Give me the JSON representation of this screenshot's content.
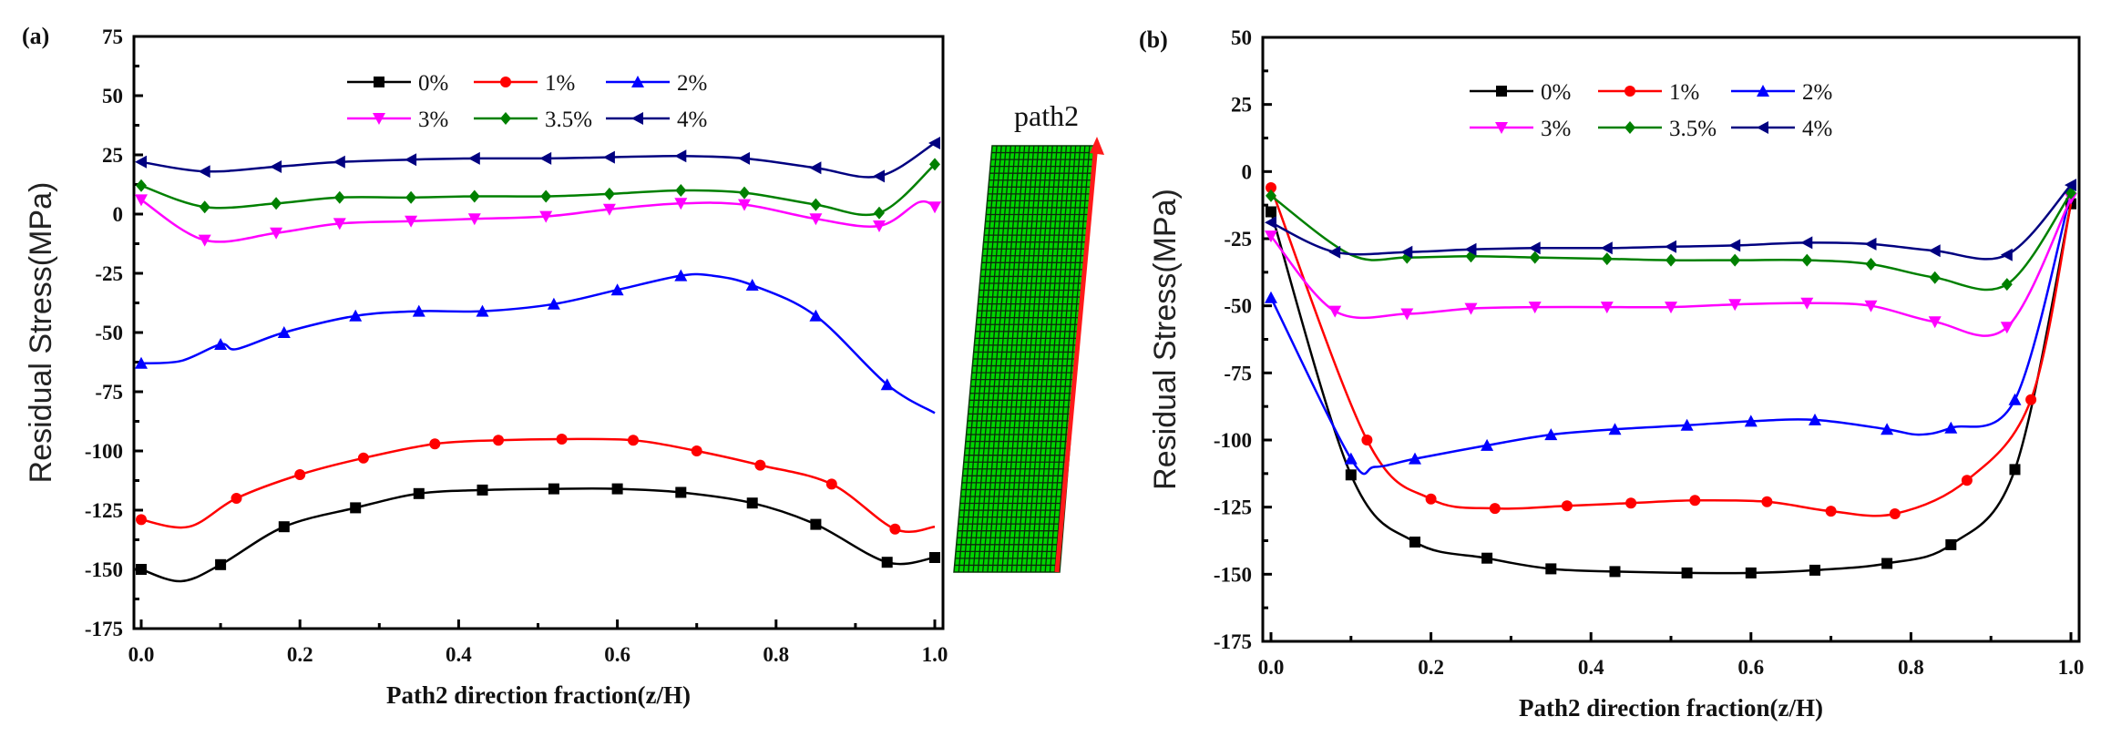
{
  "chart_data": [
    {
      "panel": "(a)",
      "type": "line",
      "xlabel": "Path2 direction fraction(z/H)",
      "ylabel": "Residual Stress(MPa)",
      "xlim": [
        0,
        1.0
      ],
      "ylim": [
        -175,
        75
      ],
      "yticks": [
        -175,
        -150,
        -125,
        -100,
        -75,
        -50,
        -25,
        0,
        25,
        50,
        75
      ],
      "xticks": [
        "0.0",
        "0.2",
        "0.4",
        "0.6",
        "0.8",
        "1.0"
      ],
      "legend": "top-center, 2 rows x 3 columns",
      "inset_label": "path2",
      "series": [
        {
          "name": "0%",
          "color": "#000000",
          "marker": "square",
          "x": [
            0,
            0.05,
            0.1,
            0.18,
            0.27,
            0.35,
            0.43,
            0.52,
            0.6,
            0.68,
            0.77,
            0.85,
            0.94,
            1.0
          ],
          "y": [
            -150,
            -155,
            -148,
            -132,
            -124,
            -118,
            -116.5,
            -116,
            -116,
            -117.5,
            -122,
            -131,
            -147,
            -145
          ],
          "m": [
            1,
            0,
            1,
            1,
            1,
            1,
            1,
            1,
            1,
            1,
            1,
            1,
            1,
            1
          ]
        },
        {
          "name": "1%",
          "color": "#ff0000",
          "marker": "circle",
          "x": [
            0,
            0.06,
            0.12,
            0.2,
            0.28,
            0.37,
            0.45,
            0.53,
            0.62,
            0.7,
            0.78,
            0.87,
            0.95,
            1.0
          ],
          "y": [
            -129,
            -132,
            -120,
            -110,
            -103,
            -97,
            -95.5,
            -95,
            -95.5,
            -100,
            -106,
            -114,
            -133,
            -132
          ],
          "m": [
            1,
            0,
            1,
            1,
            1,
            1,
            1,
            1,
            1,
            1,
            1,
            1,
            1,
            0
          ]
        },
        {
          "name": "2%",
          "color": "#0000ff",
          "marker": "triangle-up",
          "x": [
            0,
            0.05,
            0.1,
            0.12,
            0.18,
            0.27,
            0.35,
            0.43,
            0.52,
            0.6,
            0.68,
            0.72,
            0.77,
            0.85,
            0.94,
            1.0
          ],
          "y": [
            -63,
            -62,
            -55,
            -57,
            -50,
            -43,
            -41,
            -41,
            -38,
            -32,
            -26,
            -26,
            -30,
            -43,
            -72,
            -84
          ],
          "m": [
            1,
            0,
            1,
            0,
            1,
            1,
            1,
            1,
            1,
            1,
            1,
            0,
            1,
            1,
            1,
            0
          ]
        },
        {
          "name": "3%",
          "color": "#ff00ff",
          "marker": "triangle-down",
          "x": [
            0,
            0.08,
            0.17,
            0.25,
            0.34,
            0.42,
            0.51,
            0.59,
            0.68,
            0.76,
            0.85,
            0.93,
            0.98,
            1.0
          ],
          "y": [
            6,
            -11,
            -8,
            -4,
            -3,
            -2,
            -1,
            2,
            4.5,
            4,
            -2,
            -5,
            5,
            3
          ],
          "m": [
            1,
            1,
            1,
            1,
            1,
            1,
            1,
            1,
            1,
            1,
            1,
            1,
            0,
            1
          ]
        },
        {
          "name": "3.5%",
          "color": "#008000",
          "marker": "diamond",
          "x": [
            0,
            0.08,
            0.17,
            0.25,
            0.34,
            0.42,
            0.51,
            0.59,
            0.68,
            0.76,
            0.85,
            0.93,
            1.0
          ],
          "y": [
            12,
            3,
            4.5,
            7,
            7,
            7.5,
            7.5,
            8.5,
            10,
            9,
            4,
            0.5,
            21
          ],
          "m": [
            1,
            1,
            1,
            1,
            1,
            1,
            1,
            1,
            1,
            1,
            1,
            1,
            1
          ]
        },
        {
          "name": "4%",
          "color": "#000080",
          "marker": "triangle-left",
          "x": [
            0,
            0.08,
            0.17,
            0.25,
            0.34,
            0.42,
            0.51,
            0.59,
            0.68,
            0.76,
            0.85,
            0.93,
            1.0
          ],
          "y": [
            22,
            18,
            20,
            22,
            23,
            23.5,
            23.5,
            24,
            24.5,
            23.5,
            19.5,
            16,
            30
          ],
          "m": [
            1,
            1,
            1,
            1,
            1,
            1,
            1,
            1,
            1,
            1,
            1,
            1,
            1
          ]
        }
      ]
    },
    {
      "panel": "(b)",
      "type": "line",
      "xlabel": "Path2 direction fraction(z/H)",
      "ylabel": "Residual Stress(MPa)",
      "xlim": [
        0,
        1.0
      ],
      "ylim": [
        -175,
        50
      ],
      "yticks": [
        -175,
        -150,
        -125,
        -100,
        -75,
        -50,
        -25,
        0,
        25,
        50
      ],
      "xticks": [
        "0.0",
        "0.2",
        "0.4",
        "0.6",
        "0.8",
        "1.0"
      ],
      "legend": "top-center, 2 rows x 3 columns",
      "series": [
        {
          "name": "0%",
          "color": "#000000",
          "marker": "square",
          "x": [
            0,
            0.1,
            0.18,
            0.27,
            0.35,
            0.43,
            0.52,
            0.6,
            0.68,
            0.77,
            0.85,
            0.93,
            1.0
          ],
          "y": [
            -15,
            -113,
            -138,
            -144,
            -148,
            -149,
            -149.5,
            -149.5,
            -148.5,
            -146,
            -139,
            -111,
            -12
          ],
          "m": [
            1,
            1,
            1,
            1,
            1,
            1,
            1,
            1,
            1,
            1,
            1,
            1,
            1
          ]
        },
        {
          "name": "1%",
          "color": "#ff0000",
          "marker": "circle",
          "x": [
            0,
            0.12,
            0.2,
            0.28,
            0.37,
            0.45,
            0.53,
            0.62,
            0.7,
            0.78,
            0.87,
            0.95,
            1.0
          ],
          "y": [
            -6,
            -100,
            -122,
            -125.5,
            -124.5,
            -123.5,
            -122.5,
            -123,
            -126.5,
            -127.5,
            -115,
            -85,
            -12
          ],
          "m": [
            1,
            1,
            1,
            1,
            1,
            1,
            1,
            1,
            1,
            1,
            1,
            1,
            0
          ]
        },
        {
          "name": "2%",
          "color": "#0000ff",
          "marker": "triangle-up",
          "x": [
            0,
            0.1,
            0.13,
            0.18,
            0.27,
            0.35,
            0.43,
            0.52,
            0.6,
            0.68,
            0.77,
            0.81,
            0.85,
            0.93,
            1.0
          ],
          "y": [
            -47,
            -107,
            -110,
            -107,
            -102,
            -98,
            -96,
            -94.5,
            -93,
            -92.5,
            -96,
            -98,
            -95.5,
            -85,
            -8
          ],
          "m": [
            1,
            1,
            0,
            1,
            1,
            1,
            1,
            1,
            1,
            1,
            1,
            0,
            1,
            1,
            0
          ]
        },
        {
          "name": "3%",
          "color": "#ff00ff",
          "marker": "triangle-down",
          "x": [
            0,
            0.08,
            0.17,
            0.25,
            0.33,
            0.42,
            0.5,
            0.58,
            0.67,
            0.75,
            0.83,
            0.92,
            1.0
          ],
          "y": [
            -24,
            -52,
            -53,
            -51,
            -50.5,
            -50.5,
            -50.5,
            -49.5,
            -49,
            -50,
            -56,
            -58,
            -10
          ],
          "m": [
            1,
            1,
            1,
            1,
            1,
            1,
            1,
            1,
            1,
            1,
            1,
            1,
            1
          ]
        },
        {
          "name": "3.5%",
          "color": "#008000",
          "marker": "diamond",
          "x": [
            0,
            0.1,
            0.17,
            0.25,
            0.33,
            0.42,
            0.5,
            0.58,
            0.67,
            0.75,
            0.83,
            0.92,
            1.0
          ],
          "y": [
            -9,
            -31,
            -32,
            -31.5,
            -32,
            -32.5,
            -33,
            -33,
            -33,
            -34.5,
            -39.5,
            -42,
            -8
          ],
          "m": [
            1,
            0,
            1,
            1,
            1,
            1,
            1,
            1,
            1,
            1,
            1,
            1,
            1
          ]
        },
        {
          "name": "4%",
          "color": "#000080",
          "marker": "triangle-left",
          "x": [
            0,
            0.08,
            0.17,
            0.25,
            0.33,
            0.42,
            0.5,
            0.58,
            0.67,
            0.75,
            0.83,
            0.92,
            1.0
          ],
          "y": [
            -19,
            -30,
            -30,
            -29,
            -28.5,
            -28.5,
            -28,
            -27.5,
            -26.5,
            -27,
            -29.5,
            -31,
            -5
          ],
          "m": [
            1,
            1,
            1,
            1,
            1,
            1,
            1,
            1,
            1,
            1,
            1,
            1,
            1
          ]
        }
      ]
    }
  ]
}
